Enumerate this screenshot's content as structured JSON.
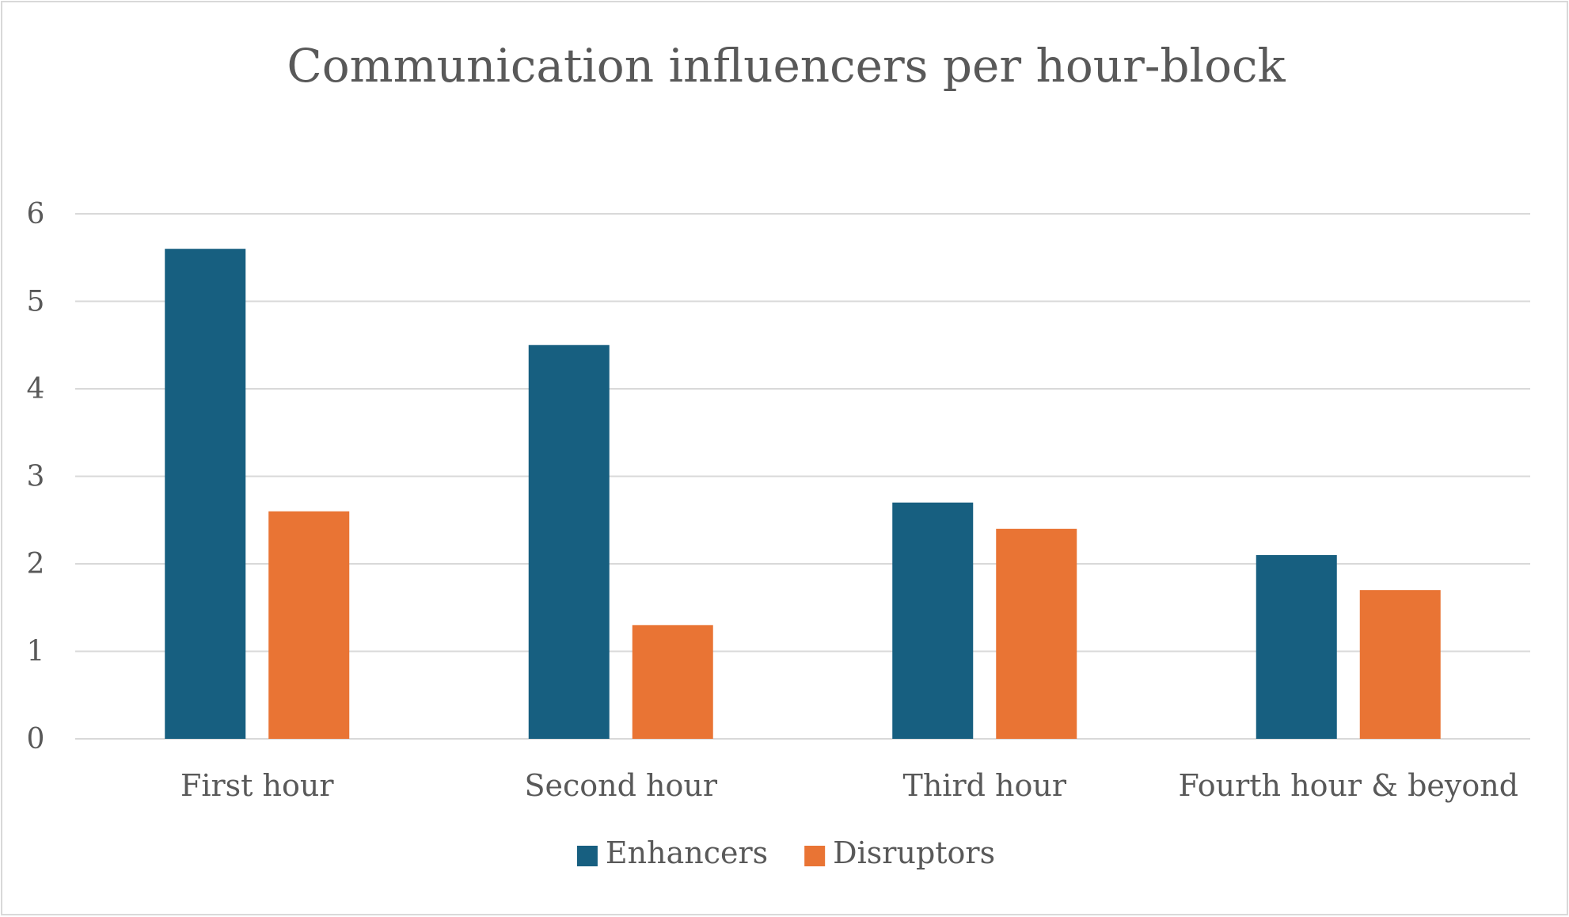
{
  "chart_data": {
    "type": "bar",
    "title": "Communication influencers per hour-block",
    "xlabel": "",
    "ylabel": "",
    "categories": [
      "First hour",
      "Second hour",
      "Third hour",
      "Fourth hour & beyond"
    ],
    "series": [
      {
        "name": "Enhancers",
        "color": "#175f80",
        "values": [
          5.6,
          4.5,
          2.7,
          2.1
        ]
      },
      {
        "name": "Disruptors",
        "color": "#e97434",
        "values": [
          2.6,
          1.3,
          2.4,
          1.7
        ]
      }
    ],
    "ylim": [
      0,
      6
    ],
    "yticks": [
      "0",
      "1",
      "2",
      "3",
      "4",
      "5",
      "6"
    ],
    "grid": true,
    "legend_position": "bottom"
  }
}
